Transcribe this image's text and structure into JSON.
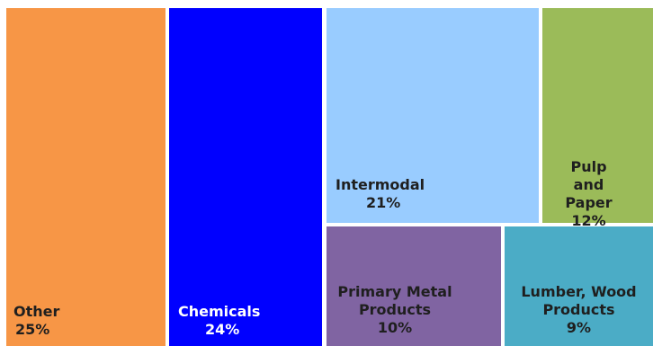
{
  "chart_data": {
    "type": "treemap",
    "title": "",
    "items": [
      {
        "name": "Other",
        "value_label": "25%",
        "value": 25,
        "color": "#f79646"
      },
      {
        "name": "Chemicals",
        "value_label": "24%",
        "value": 24,
        "color": "#0000ff"
      },
      {
        "name": "Intermodal",
        "value_label": "21%",
        "value": 21,
        "color": "#99ccff"
      },
      {
        "name": "Pulp and Paper",
        "value_label": "12%",
        "value": 12,
        "color": "#9bbb59"
      },
      {
        "name": "Primary Metal Products",
        "value_label": "10%",
        "value": 10,
        "color": "#8064a2"
      },
      {
        "name": "Lumber, Wood Products",
        "value_label": "9%",
        "value": 9,
        "color": "#4bacc6"
      }
    ]
  }
}
